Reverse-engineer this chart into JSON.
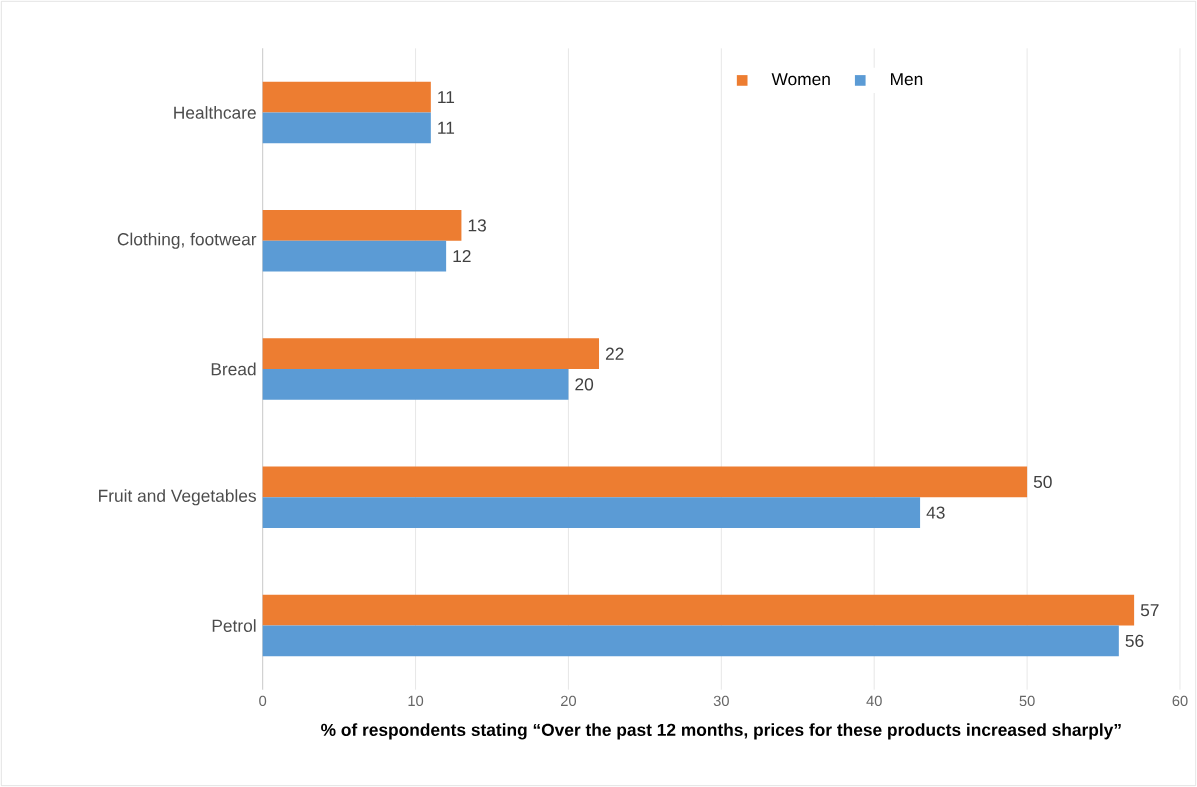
{
  "chart_data": {
    "type": "bar",
    "orientation": "horizontal",
    "xlabel": "% of respondents stating “Over the past 12 months, prices for these products increased sharply”",
    "categories": [
      "Healthcare",
      "Clothing, footwear",
      "Bread",
      "Fruit and Vegetables",
      "Petrol"
    ],
    "series": [
      {
        "name": "Women",
        "color": "#ed7d31",
        "values": [
          11,
          13,
          22,
          50,
          57
        ]
      },
      {
        "name": "Men",
        "color": "#5b9bd5",
        "values": [
          11,
          12,
          20,
          43,
          56
        ]
      }
    ],
    "xlim": [
      0,
      60
    ],
    "xticks": [
      0,
      10,
      20,
      30,
      40,
      50,
      60
    ],
    "grid": "x",
    "legend": "top",
    "data_labels": true
  }
}
